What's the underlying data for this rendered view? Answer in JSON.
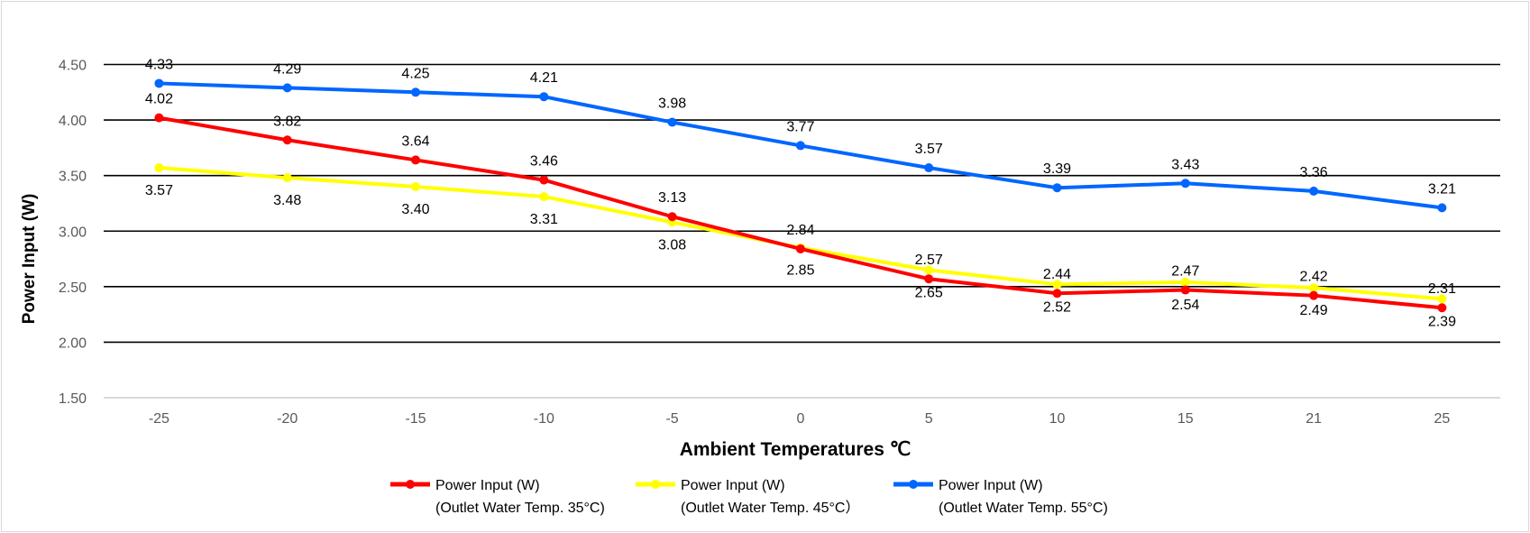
{
  "chart_data": {
    "type": "line",
    "title": "",
    "xlabel": "Ambient Temperatures ℃",
    "ylabel": "Power Input (W)",
    "categories": [
      "-25",
      "-20",
      "-15",
      "-10",
      "-5",
      "0",
      "5",
      "10",
      "15",
      "21",
      "25"
    ],
    "ylim": [
      1.5,
      4.5
    ],
    "yticks": [
      "1.50",
      "2.00",
      "2.50",
      "3.00",
      "3.50",
      "4.00",
      "4.50"
    ],
    "grid": true,
    "legend_position": "bottom",
    "series": [
      {
        "name_line1": "Power Input (W)",
        "name_line2": "(Outlet Water Temp. 35°C)",
        "color": "#ff0000",
        "label_side": "above",
        "values": [
          4.02,
          3.82,
          3.64,
          3.46,
          3.13,
          2.84,
          2.57,
          2.44,
          2.47,
          2.42,
          2.31
        ]
      },
      {
        "name_line1": "Power Input (W)",
        "name_line2": "(Outlet Water Temp. 45°C）",
        "color": "#ffff00",
        "label_side": "below",
        "values": [
          3.57,
          3.48,
          3.4,
          3.31,
          3.08,
          2.85,
          2.65,
          2.52,
          2.54,
          2.49,
          2.39
        ]
      },
      {
        "name_line1": "Power Input (W)",
        "name_line2": "(Outlet Water Temp. 55°C)",
        "color": "#0066ff",
        "label_side": "above",
        "values": [
          4.33,
          4.29,
          4.25,
          4.21,
          3.98,
          3.77,
          3.57,
          3.39,
          3.43,
          3.36,
          3.21
        ]
      }
    ]
  }
}
